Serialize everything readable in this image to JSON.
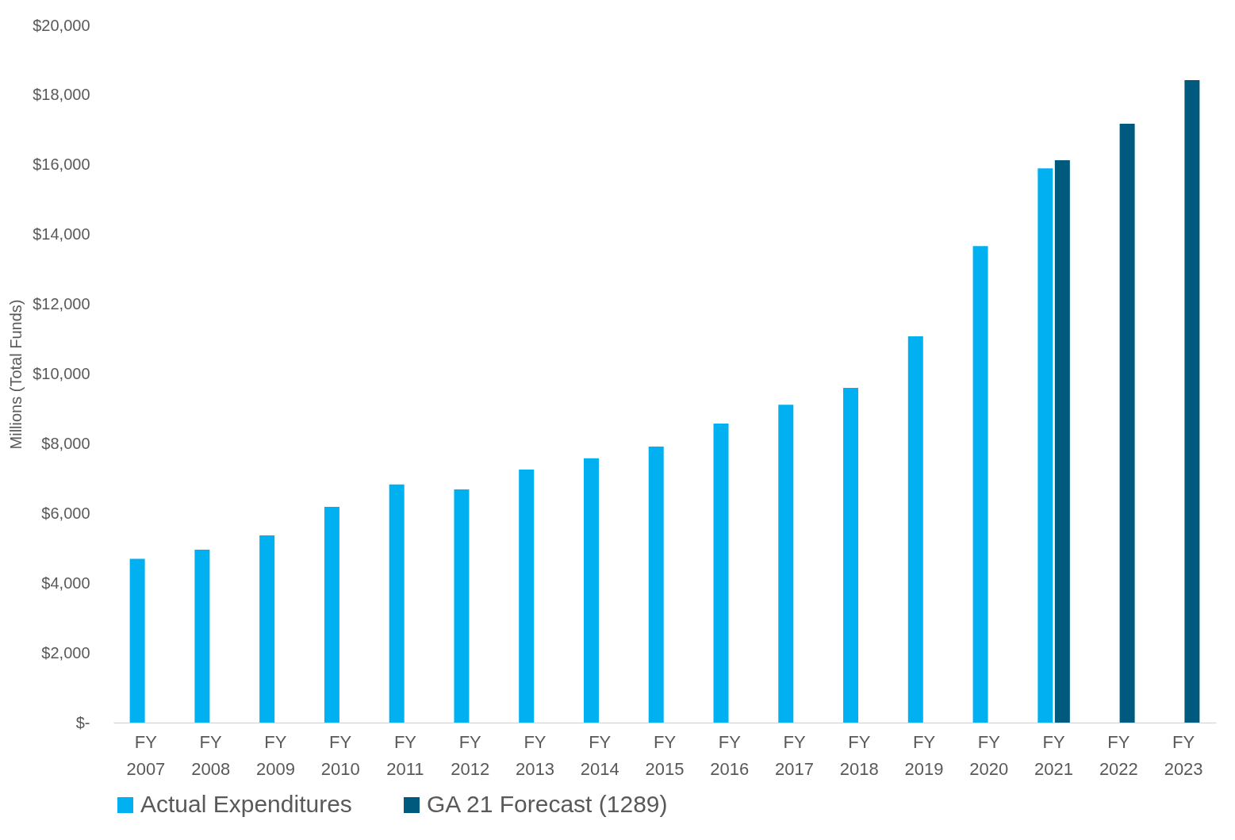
{
  "chart_data": {
    "type": "bar",
    "ylabel": "Millions (Total Funds)",
    "categories": [
      "FY 2007",
      "FY 2008",
      "FY 2009",
      "FY 2010",
      "FY 2011",
      "FY 2012",
      "FY 2013",
      "FY 2014",
      "FY 2015",
      "FY 2016",
      "FY 2017",
      "FY 2018",
      "FY 2019",
      "FY 2020",
      "FY 2021",
      "FY 2022",
      "FY 2023"
    ],
    "series": [
      {
        "name": "Actual Expenditures",
        "color": "#00b0f0",
        "values": [
          4700,
          4960,
          5370,
          6190,
          6830,
          6690,
          7260,
          7580,
          7920,
          8580,
          9120,
          9600,
          11080,
          13670,
          15900,
          null,
          null
        ]
      },
      {
        "name": "GA 21 Forecast (1289)",
        "color": "#005a7d",
        "values": [
          null,
          null,
          null,
          null,
          null,
          null,
          null,
          null,
          null,
          null,
          null,
          null,
          null,
          null,
          16130,
          17180,
          18430
        ]
      }
    ],
    "ylim": [
      0,
      20000
    ],
    "yticks": [
      {
        "value": 0,
        "label": "$-"
      },
      {
        "value": 2000,
        "label": "$2,000"
      },
      {
        "value": 4000,
        "label": "$4,000"
      },
      {
        "value": 6000,
        "label": "$6,000"
      },
      {
        "value": 8000,
        "label": "$8,000"
      },
      {
        "value": 10000,
        "label": "$10,000"
      },
      {
        "value": 12000,
        "label": "$12,000"
      },
      {
        "value": 14000,
        "label": "$14,000"
      },
      {
        "value": 16000,
        "label": "$16,000"
      },
      {
        "value": 18000,
        "label": "$18,000"
      },
      {
        "value": 20000,
        "label": "$20,000"
      }
    ],
    "grid": false,
    "legend": "bottom"
  }
}
